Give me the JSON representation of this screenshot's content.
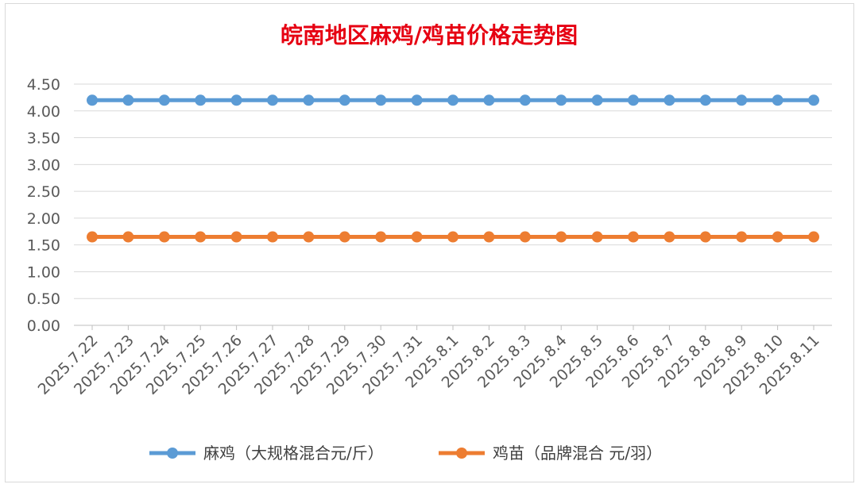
{
  "chart_data": {
    "type": "line",
    "title": "皖南地区麻鸡/鸡苗价格走势图",
    "xlabel": "",
    "ylabel": "",
    "ylim": [
      0,
      4.5
    ],
    "yticks": [
      "0.00",
      "0.50",
      "1.00",
      "1.50",
      "2.00",
      "2.50",
      "3.00",
      "3.50",
      "4.00",
      "4.50"
    ],
    "grid": true,
    "legend_position": "bottom",
    "x": [
      "2025.7.22",
      "2025.7.23",
      "2025.7.24",
      "2025.7.25",
      "2025.7.26",
      "2025.7.27",
      "2025.7.28",
      "2025.7.29",
      "2025.7.30",
      "2025.7.31",
      "2025.8.1",
      "2025.8.2",
      "2025.8.3",
      "2025.8.4",
      "2025.8.5",
      "2025.8.6",
      "2025.8.7",
      "2025.8.8",
      "2025.8.9",
      "2025.8.10",
      "2025.8.11"
    ],
    "series": [
      {
        "name": "麻鸡（大规格混合元/斤）",
        "color": "#5b9bd5",
        "values": [
          4.2,
          4.2,
          4.2,
          4.2,
          4.2,
          4.2,
          4.2,
          4.2,
          4.2,
          4.2,
          4.2,
          4.2,
          4.2,
          4.2,
          4.2,
          4.2,
          4.2,
          4.2,
          4.2,
          4.2,
          4.2
        ]
      },
      {
        "name": "鸡苗（品牌混合 元/羽）",
        "color": "#ed7d31",
        "values": [
          1.65,
          1.65,
          1.65,
          1.65,
          1.65,
          1.65,
          1.65,
          1.65,
          1.65,
          1.65,
          1.65,
          1.65,
          1.65,
          1.65,
          1.65,
          1.65,
          1.65,
          1.65,
          1.65,
          1.65,
          1.65
        ]
      }
    ]
  }
}
